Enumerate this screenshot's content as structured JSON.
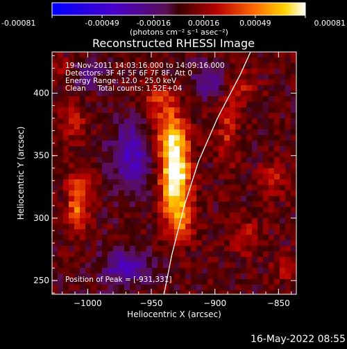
{
  "chart_data": {
    "type": "heatmap",
    "title": "Reconstructed RHESSI Image",
    "xlabel": "Heliocentric X (arcsec)",
    "ylabel": "Heliocentric Y (arcsec)",
    "xlim": [
      -1028,
      -836
    ],
    "ylim": [
      239,
      433
    ],
    "x_ticks": [
      -1000,
      -950,
      -900,
      -850
    ],
    "y_ticks": [
      250,
      300,
      350,
      400
    ],
    "colorbar": {
      "range": [
        -0.00081,
        0.00081
      ],
      "ticks": [
        -0.00081,
        -0.00049,
        -0.00016,
        0.00016,
        0.00049,
        0.00081
      ],
      "tick_labels": [
        "-0.00081",
        "-0.00049",
        "-0.00016",
        "0.00016",
        "0.00049",
        "0.00081"
      ],
      "unit_label": "(photons cm⁻² s⁻¹ asec⁻²)"
    },
    "annotations": [
      "19-Nov-2011 14:03:16.000 to 14:09:16.000",
      "Detectors: 3F 4F 5F 6F 7F 8F, Att 0",
      "Energy Range: 12.0 - 25.0 keV",
      "Clean     Total counts: 1.52E+04",
      "Position of Peak = [-931,331]"
    ],
    "peak": {
      "x": -931,
      "y": 331,
      "value": 0.00081
    },
    "hot_spots": [
      {
        "x": -931,
        "y": 331,
        "sx": 8,
        "sy": 22,
        "amp": 1.0
      },
      {
        "x": -935,
        "y": 365,
        "sx": 9,
        "sy": 16,
        "amp": 0.55
      },
      {
        "x": -944,
        "y": 395,
        "sx": 10,
        "sy": 10,
        "amp": 0.3
      },
      {
        "x": -927,
        "y": 295,
        "sx": 7,
        "sy": 12,
        "amp": 0.4
      },
      {
        "x": -1008,
        "y": 308,
        "sx": 6,
        "sy": 12,
        "amp": 0.55
      },
      {
        "x": -1005,
        "y": 330,
        "sx": 8,
        "sy": 8,
        "amp": 0.3
      },
      {
        "x": -1012,
        "y": 375,
        "sx": 8,
        "sy": 10,
        "amp": 0.28
      },
      {
        "x": -890,
        "y": 370,
        "sx": 6,
        "sy": 20,
        "amp": 0.3
      },
      {
        "x": -880,
        "y": 405,
        "sx": 8,
        "sy": 10,
        "amp": 0.25
      },
      {
        "x": -855,
        "y": 330,
        "sx": 7,
        "sy": 10,
        "amp": 0.3
      },
      {
        "x": -875,
        "y": 285,
        "sx": 8,
        "sy": 10,
        "amp": 0.25
      },
      {
        "x": -845,
        "y": 260,
        "sx": 6,
        "sy": 8,
        "amp": 0.22
      },
      {
        "x": -1020,
        "y": 420,
        "sx": 5,
        "sy": 6,
        "amp": 0.2
      }
    ],
    "cold_spots": [
      {
        "x": -965,
        "y": 350,
        "sx": 12,
        "sy": 18,
        "amp": -0.5
      },
      {
        "x": -970,
        "y": 260,
        "sx": 14,
        "sy": 10,
        "amp": -0.45
      },
      {
        "x": -905,
        "y": 410,
        "sx": 10,
        "sy": 10,
        "amp": -0.35
      },
      {
        "x": -1000,
        "y": 415,
        "sx": 8,
        "sy": 8,
        "amp": -0.3
      }
    ],
    "limb": {
      "points": [
        [
          -940,
          239
        ],
        [
          -934,
          270
        ],
        [
          -924,
          310
        ],
        [
          -913,
          345
        ],
        [
          -898,
          380
        ],
        [
          -880,
          415
        ],
        [
          -872,
          433
        ]
      ]
    }
  },
  "footer": {
    "date": "16-May-2022 08:55"
  }
}
